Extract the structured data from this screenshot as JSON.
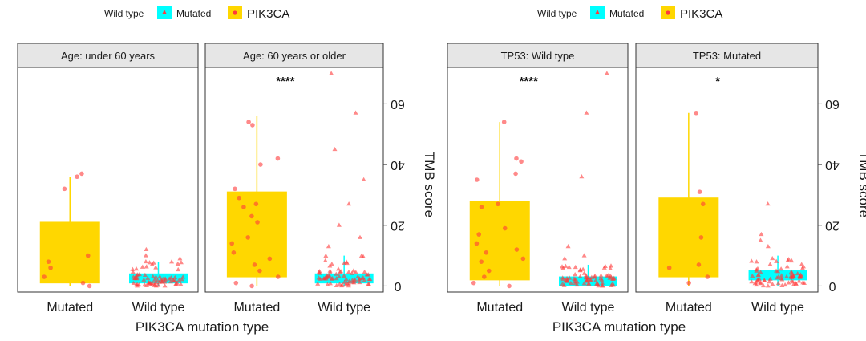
{
  "chart_data": [
    {
      "type": "box",
      "panel_group": "age",
      "xlabel": "PIK3CA mutation type",
      "ylabel": "TMB score",
      "ylim": [
        -2,
        72
      ],
      "y_ticks": [
        0,
        20,
        40,
        60
      ],
      "categories": [
        "Wild type",
        "Mutated"
      ],
      "legend": {
        "placement": "top",
        "entries": [
          {
            "label": "PIK3CA",
            "color": "#FFD700"
          },
          {
            "label": "Mutated",
            "color": "#00FFFF"
          },
          {
            "label": "Wild type",
            "color": "#00FFFF"
          }
        ]
      },
      "facets": [
        {
          "strip": "Age: 60 years or older",
          "significance": "****",
          "boxes": [
            {
              "category": "Wild type",
              "color": "#00FFFF",
              "q1": 1,
              "median": 2,
              "q3": 4,
              "whisker_low": 0,
              "whisker_high": 10
            },
            {
              "category": "Mutated",
              "color": "#FFD700",
              "q1": 3,
              "median": 8,
              "q3": 31,
              "whisker_low": 0,
              "whisker_high": 56
            }
          ],
          "outliers": [
            {
              "category": "Wild type",
              "values": [
                70,
                57,
                45,
                35,
                27,
                20,
                16,
                13
              ]
            },
            {
              "category": "Mutated",
              "values": [
                54,
                53,
                42,
                40,
                32,
                29,
                27,
                26,
                23,
                21,
                16,
                14,
                11,
                9,
                7,
                5,
                3,
                1,
                0
              ]
            }
          ]
        },
        {
          "strip": "Age: under 60 years",
          "significance": "",
          "boxes": [
            {
              "category": "Wild type",
              "color": "#00FFFF",
              "q1": 1,
              "median": 2,
              "q3": 4,
              "whisker_low": 0,
              "whisker_high": 8
            },
            {
              "category": "Mutated",
              "color": "#FFD700",
              "q1": 1,
              "median": 3,
              "q3": 21,
              "whisker_low": 0,
              "whisker_high": 36
            }
          ],
          "outliers": [
            {
              "category": "Wild type",
              "values": [
                12,
                10,
                9,
                8
              ]
            },
            {
              "category": "Mutated",
              "values": [
                37,
                36,
                32,
                10,
                8,
                6,
                3,
                1,
                0
              ]
            }
          ]
        }
      ]
    },
    {
      "type": "box",
      "panel_group": "tp53",
      "xlabel": "PIK3CA mutation type",
      "ylabel": "TMB score",
      "ylim": [
        -2,
        72
      ],
      "y_ticks": [
        0,
        20,
        40,
        60
      ],
      "categories": [
        "Wild type",
        "Mutated"
      ],
      "legend": {
        "placement": "top",
        "entries": [
          {
            "label": "PIK3CA",
            "color": "#FFD700"
          },
          {
            "label": "Mutated",
            "color": "#00FFFF"
          },
          {
            "label": "Wild type",
            "color": "#00FFFF"
          }
        ]
      },
      "facets": [
        {
          "strip": "TP53: Mutated",
          "significance": "*",
          "boxes": [
            {
              "category": "Wild type",
              "color": "#00FFFF",
              "q1": 2,
              "median": 3,
              "q3": 5,
              "whisker_low": 0,
              "whisker_high": 10
            },
            {
              "category": "Mutated",
              "color": "#FFD700",
              "q1": 3,
              "median": 8,
              "q3": 29,
              "whisker_low": 0,
              "whisker_high": 57
            }
          ],
          "outliers": [
            {
              "category": "Wild type",
              "values": [
                27,
                17,
                15,
                13
              ]
            },
            {
              "category": "Mutated",
              "values": [
                57,
                31,
                27,
                16,
                7,
                6,
                3,
                1
              ]
            }
          ]
        },
        {
          "strip": "TP53: Wild type",
          "significance": "****",
          "boxes": [
            {
              "category": "Wild type",
              "color": "#00FFFF",
              "q1": 0,
              "median": 1,
              "q3": 3,
              "whisker_low": 0,
              "whisker_high": 7
            },
            {
              "category": "Mutated",
              "color": "#FFD700",
              "q1": 2,
              "median": 8,
              "q3": 28,
              "whisker_low": 0,
              "whisker_high": 54
            }
          ],
          "outliers": [
            {
              "category": "Wild type",
              "values": [
                70,
                57,
                36,
                13,
                10,
                9
              ]
            },
            {
              "category": "Mutated",
              "values": [
                54,
                42,
                41,
                37,
                35,
                27,
                26,
                19,
                17,
                14,
                12,
                11,
                9,
                8,
                5,
                3,
                1,
                0
              ]
            }
          ]
        }
      ]
    }
  ]
}
